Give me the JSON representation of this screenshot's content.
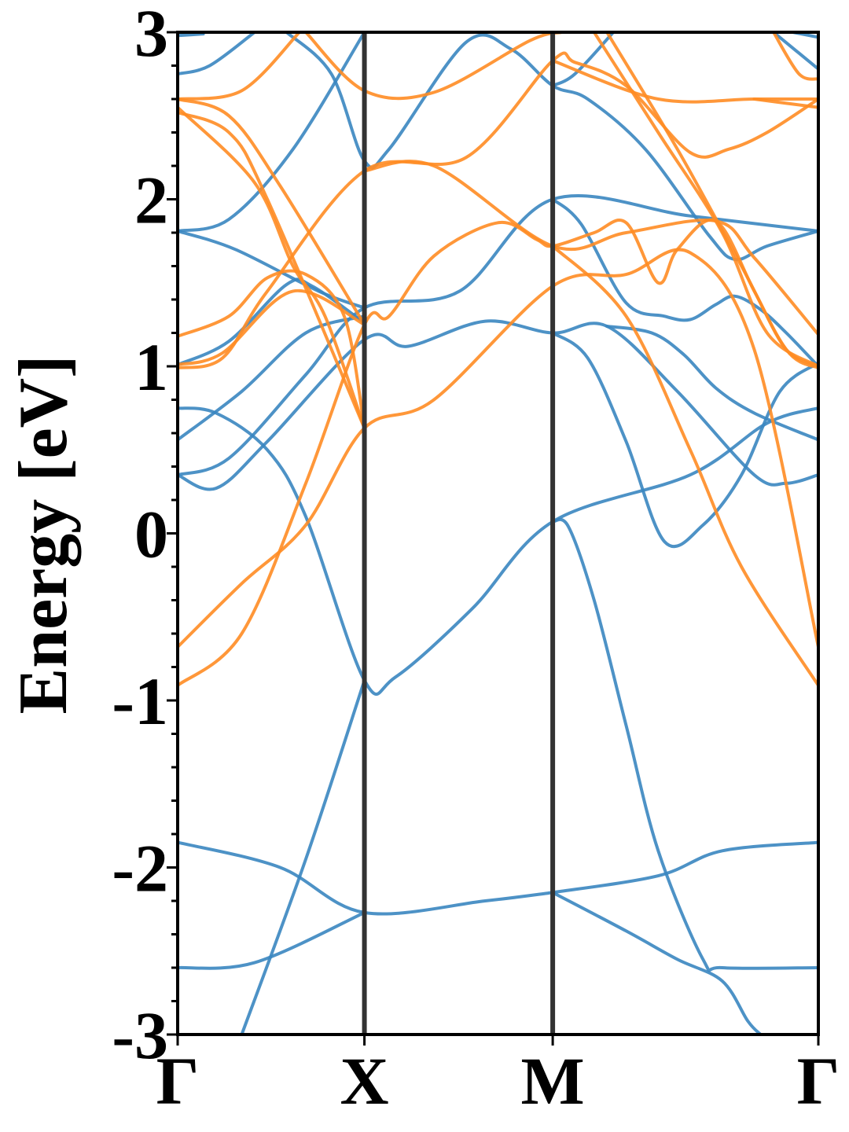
{
  "chart_data": {
    "type": "line",
    "title": "",
    "xlabel": "",
    "ylabel": "Energy [eV]",
    "ylim": [
      -3,
      3
    ],
    "x_ticks": [
      {
        "label": "Γ",
        "k": 0.0
      },
      {
        "label": "X",
        "k": 0.2915
      },
      {
        "label": "M",
        "k": 0.5854
      },
      {
        "label": "Γ",
        "k": 1.0
      }
    ],
    "y_ticks": [
      {
        "label": "3",
        "value": 3
      },
      {
        "label": "2",
        "value": 2
      },
      {
        "label": "1",
        "value": 1
      },
      {
        "label": "0",
        "value": 0
      },
      {
        "label": "-1",
        "value": -1
      },
      {
        "label": "-2",
        "value": -2
      },
      {
        "label": "-3",
        "value": -3
      }
    ],
    "y_minor_step": 0.2,
    "grid": false,
    "colors": {
      "blue": "#3a86c0",
      "orange": "#ff8c24",
      "separator": "#333333"
    },
    "series": [
      {
        "color": "blue",
        "points": [
          [
            0.0,
            0.35
          ],
          [
            0.06,
            0.27
          ],
          [
            0.14,
            0.55
          ],
          [
            0.2915,
            1.16
          ],
          [
            0.36,
            1.12
          ],
          [
            0.48,
            1.27
          ],
          [
            0.5854,
            1.2
          ],
          [
            0.67,
            1.24
          ],
          [
            0.78,
            0.85
          ],
          [
            0.9,
            0.35
          ],
          [
            0.95,
            0.3
          ],
          [
            1.0,
            0.35
          ]
        ]
      },
      {
        "color": "blue",
        "points": [
          [
            0.0,
            0.35
          ],
          [
            0.08,
            0.45
          ],
          [
            0.2,
            0.95
          ],
          [
            0.2915,
            1.35
          ],
          [
            0.44,
            1.45
          ],
          [
            0.5854,
            2.0
          ],
          [
            0.8,
            1.9
          ],
          [
            1.0,
            1.81
          ]
        ]
      },
      {
        "color": "blue",
        "points": [
          [
            0.0,
            0.56
          ],
          [
            0.1,
            0.85
          ],
          [
            0.2,
            1.2
          ],
          [
            0.2915,
            1.3
          ]
        ]
      },
      {
        "color": "blue",
        "points": [
          [
            0.0,
            1.81
          ],
          [
            0.09,
            1.7
          ],
          [
            0.22,
            1.45
          ],
          [
            0.2915,
            1.35
          ]
        ]
      },
      {
        "color": "blue",
        "points": [
          [
            0.0,
            0.75
          ],
          [
            0.06,
            0.72
          ],
          [
            0.14,
            0.5
          ],
          [
            0.2,
            0.1
          ],
          [
            0.2915,
            -0.88
          ],
          [
            0.34,
            -0.86
          ],
          [
            0.46,
            -0.45
          ],
          [
            0.5854,
            0.07
          ],
          [
            0.8,
            0.35
          ],
          [
            0.92,
            0.66
          ],
          [
            1.0,
            0.75
          ]
        ]
      },
      {
        "color": "blue",
        "points": [
          [
            0.0,
            1.01
          ],
          [
            0.08,
            1.15
          ],
          [
            0.17,
            1.49
          ],
          [
            0.21,
            1.48
          ],
          [
            0.2915,
            1.26
          ]
        ]
      },
      {
        "color": "blue",
        "points": [
          [
            0.0,
            1.81
          ],
          [
            0.08,
            1.88
          ],
          [
            0.18,
            2.3
          ],
          [
            0.2915,
            3.0
          ]
        ]
      },
      {
        "color": "blue",
        "points": [
          [
            0.0,
            2.98
          ],
          [
            0.04,
            2.99
          ]
        ]
      },
      {
        "color": "blue",
        "points": [
          [
            0.0,
            2.75
          ],
          [
            0.05,
            2.8
          ],
          [
            0.12,
            3.0
          ]
        ]
      },
      {
        "color": "blue",
        "points": [
          [
            0.17,
            3.0
          ],
          [
            0.24,
            2.75
          ],
          [
            0.2915,
            2.23
          ],
          [
            0.33,
            2.3
          ],
          [
            0.45,
            2.94
          ],
          [
            0.52,
            2.9
          ],
          [
            0.5854,
            2.68
          ],
          [
            0.64,
            2.6
          ],
          [
            0.73,
            2.3
          ],
          [
            0.83,
            1.78
          ],
          [
            0.87,
            1.64
          ],
          [
            0.92,
            1.72
          ],
          [
            1.0,
            1.81
          ]
        ]
      },
      {
        "color": "blue",
        "points": [
          [
            0.5854,
            2.68
          ],
          [
            0.62,
            2.75
          ],
          [
            0.68,
            3.0
          ]
        ]
      },
      {
        "color": "blue",
        "points": [
          [
            0.5854,
            1.2
          ],
          [
            0.64,
            1.05
          ],
          [
            0.7,
            0.55
          ],
          [
            0.76,
            -0.05
          ],
          [
            0.82,
            0.05
          ],
          [
            0.88,
            0.35
          ],
          [
            0.94,
            0.85
          ],
          [
            1.0,
            1.02
          ]
        ]
      },
      {
        "color": "blue",
        "points": [
          [
            0.67,
            1.24
          ],
          [
            0.74,
            1.2
          ],
          [
            0.79,
            1.07
          ],
          [
            0.84,
            0.87
          ],
          [
            0.9,
            0.72
          ],
          [
            1.0,
            0.56
          ]
        ]
      },
      {
        "color": "blue",
        "points": [
          [
            0.5854,
            2.0
          ],
          [
            0.63,
            1.85
          ],
          [
            0.7,
            1.38
          ],
          [
            0.76,
            1.3
          ],
          [
            0.8,
            1.28
          ],
          [
            0.84,
            1.37
          ],
          [
            0.87,
            1.42
          ],
          [
            0.91,
            1.34
          ],
          [
            0.95,
            1.2
          ],
          [
            1.0,
            1.0
          ]
        ]
      },
      {
        "color": "blue",
        "points": [
          [
            0.5854,
            0.07
          ],
          [
            0.61,
            0.04
          ],
          [
            0.65,
            -0.4
          ],
          [
            0.7,
            -1.15
          ],
          [
            0.75,
            -1.9
          ],
          [
            0.82,
            -2.55
          ],
          [
            0.85,
            -2.6
          ],
          [
            1.0,
            -2.6
          ]
        ]
      },
      {
        "color": "blue",
        "points": [
          [
            0.5854,
            -2.15
          ],
          [
            0.7,
            -2.38
          ],
          [
            0.78,
            -2.55
          ],
          [
            0.85,
            -2.68
          ],
          [
            0.89,
            -2.92
          ],
          [
            0.91,
            -3.0
          ]
        ]
      },
      {
        "color": "blue",
        "points": [
          [
            0.5854,
            -2.15
          ],
          [
            0.48,
            -2.2
          ],
          [
            0.2915,
            -2.27
          ],
          [
            0.16,
            -2.0
          ],
          [
            0.0,
            -1.85
          ]
        ]
      },
      {
        "color": "blue",
        "points": [
          [
            0.5854,
            -2.15
          ],
          [
            0.75,
            -2.05
          ],
          [
            0.85,
            -1.9
          ],
          [
            1.0,
            -1.85
          ]
        ]
      },
      {
        "color": "blue",
        "points": [
          [
            0.0,
            -2.6
          ],
          [
            0.12,
            -2.57
          ],
          [
            0.2915,
            -2.27
          ]
        ]
      },
      {
        "color": "blue",
        "points": [
          [
            0.1,
            -3.0
          ],
          [
            0.2,
            -1.95
          ],
          [
            0.2915,
            -0.88
          ]
        ]
      },
      {
        "color": "blue",
        "points": [
          [
            0.93,
            3.0
          ],
          [
            1.0,
            2.78
          ]
        ]
      },
      {
        "color": "blue",
        "points": [
          [
            0.96,
            3.0
          ],
          [
            1.0,
            2.97
          ]
        ]
      },
      {
        "color": "orange",
        "points": [
          [
            0.0,
            -0.68
          ],
          [
            0.1,
            -0.3
          ],
          [
            0.2,
            0.05
          ],
          [
            0.2915,
            0.63
          ],
          [
            0.4,
            0.8
          ],
          [
            0.5854,
            1.48
          ],
          [
            0.7,
            1.55
          ],
          [
            0.8,
            1.68
          ],
          [
            0.9,
            1.1
          ],
          [
            1.0,
            -0.68
          ]
        ]
      },
      {
        "color": "orange",
        "points": [
          [
            0.0,
            -0.91
          ],
          [
            0.1,
            -0.6
          ],
          [
            0.2,
            0.3
          ],
          [
            0.2915,
            1.25
          ],
          [
            0.33,
            1.3
          ],
          [
            0.4,
            1.66
          ],
          [
            0.5,
            1.86
          ],
          [
            0.56,
            1.76
          ],
          [
            0.5854,
            1.72
          ],
          [
            0.65,
            1.8
          ],
          [
            0.7,
            1.86
          ],
          [
            0.75,
            1.5
          ],
          [
            0.78,
            1.7
          ],
          [
            0.84,
            1.87
          ],
          [
            0.9,
            1.45
          ],
          [
            0.95,
            1.1
          ],
          [
            1.0,
            1.0
          ]
        ]
      },
      {
        "color": "orange",
        "points": [
          [
            0.0,
            0.99
          ],
          [
            0.07,
            1.05
          ],
          [
            0.14,
            1.45
          ],
          [
            0.2915,
            2.17
          ],
          [
            0.45,
            2.25
          ],
          [
            0.5854,
            2.83
          ],
          [
            0.62,
            2.82
          ],
          [
            0.7,
            2.68
          ],
          [
            0.8,
            2.28
          ],
          [
            0.86,
            2.3
          ],
          [
            0.92,
            2.4
          ],
          [
            1.0,
            2.6
          ]
        ]
      },
      {
        "color": "orange",
        "points": [
          [
            0.0,
            1.01
          ],
          [
            0.07,
            1.08
          ],
          [
            0.18,
            1.45
          ],
          [
            0.2915,
            1.25
          ]
        ]
      },
      {
        "color": "orange",
        "points": [
          [
            0.0,
            1.18
          ],
          [
            0.08,
            1.3
          ],
          [
            0.14,
            1.53
          ],
          [
            0.2,
            1.55
          ],
          [
            0.26,
            1.3
          ],
          [
            0.2915,
            0.63
          ]
        ]
      },
      {
        "color": "orange",
        "points": [
          [
            0.0,
            2.52
          ],
          [
            0.08,
            2.4
          ],
          [
            0.14,
            2.0
          ],
          [
            0.2915,
            0.63
          ]
        ]
      },
      {
        "color": "orange",
        "points": [
          [
            0.0,
            2.55
          ],
          [
            0.12,
            2.1
          ],
          [
            0.18,
            1.6
          ],
          [
            0.23,
            1.3
          ],
          [
            0.2915,
            0.63
          ]
        ]
      },
      {
        "color": "orange",
        "points": [
          [
            0.0,
            2.6
          ],
          [
            0.1,
            2.65
          ],
          [
            0.19,
            3.0
          ]
        ]
      },
      {
        "color": "orange",
        "points": [
          [
            0.0,
            2.6
          ],
          [
            0.08,
            2.5
          ],
          [
            0.16,
            2.08
          ],
          [
            0.2915,
            1.25
          ]
        ]
      },
      {
        "color": "orange",
        "points": [
          [
            0.2,
            3.0
          ],
          [
            0.2915,
            2.65
          ],
          [
            0.4,
            2.64
          ],
          [
            0.55,
            2.95
          ],
          [
            0.6,
            3.0
          ]
        ]
      },
      {
        "color": "orange",
        "points": [
          [
            0.2915,
            2.17
          ],
          [
            0.4,
            2.2
          ],
          [
            0.5854,
            1.72
          ],
          [
            0.7,
            1.8
          ],
          [
            0.84,
            1.87
          ],
          [
            0.9,
            1.65
          ],
          [
            1.0,
            1.19
          ]
        ]
      },
      {
        "color": "orange",
        "points": [
          [
            0.5854,
            2.83
          ],
          [
            0.75,
            2.6
          ],
          [
            0.9,
            2.6
          ],
          [
            1.0,
            2.6
          ]
        ]
      },
      {
        "color": "orange",
        "points": [
          [
            0.5854,
            1.72
          ],
          [
            0.7,
            1.3
          ],
          [
            0.8,
            0.5
          ],
          [
            0.88,
            -0.2
          ],
          [
            1.0,
            -0.91
          ]
        ]
      },
      {
        "color": "orange",
        "points": [
          [
            0.65,
            3.0
          ],
          [
            0.75,
            2.4
          ],
          [
            0.85,
            1.8
          ],
          [
            0.92,
            1.2
          ],
          [
            1.0,
            1.0
          ]
        ]
      },
      {
        "color": "orange",
        "points": [
          [
            0.67,
            3.0
          ],
          [
            0.78,
            2.3
          ],
          [
            0.88,
            1.6
          ],
          [
            0.95,
            1.1
          ],
          [
            1.0,
            0.99
          ]
        ]
      },
      {
        "color": "orange",
        "points": [
          [
            0.93,
            3.0
          ],
          [
            0.97,
            2.75
          ],
          [
            1.0,
            2.72
          ]
        ]
      },
      {
        "color": "orange",
        "points": [
          [
            0.9,
            2.6
          ],
          [
            1.0,
            2.55
          ]
        ]
      }
    ]
  }
}
